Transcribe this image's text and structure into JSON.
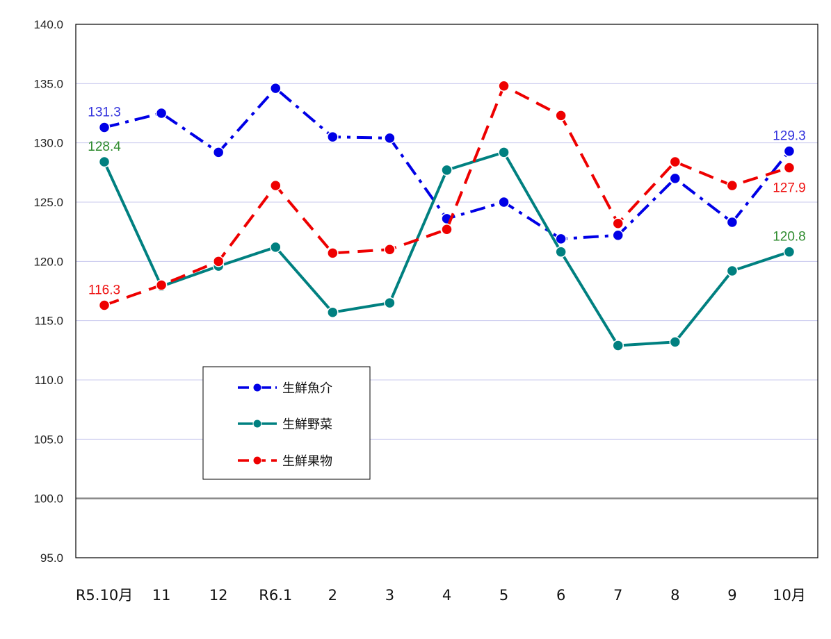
{
  "chart_data": {
    "type": "line",
    "title": "",
    "xlabel": "",
    "ylabel": "",
    "categories": [
      "R5.10月",
      "11",
      "12",
      "R6.1",
      "2",
      "3",
      "4",
      "5",
      "6",
      "7",
      "8",
      "9",
      "10月"
    ],
    "ylim": [
      95.0,
      140.0
    ],
    "yticks": [
      "95.0",
      "100.0",
      "105.0",
      "110.0",
      "115.0",
      "120.0",
      "125.0",
      "130.0",
      "135.0",
      "140.0"
    ],
    "baseline": 100.0,
    "grid": true,
    "legend_position": "lower-left",
    "series": [
      {
        "name": "生鮮魚介",
        "color": "#0000e6",
        "label_color": "#3333dd",
        "dash": "dashdot",
        "values": [
          131.3,
          132.5,
          129.2,
          134.6,
          130.5,
          130.4,
          123.6,
          125.0,
          121.9,
          122.2,
          127.0,
          123.3,
          129.3
        ],
        "labels": [
          {
            "index": 0,
            "text": "131.3",
            "placement": "above"
          },
          {
            "index": 12,
            "text": "129.3",
            "placement": "above"
          }
        ]
      },
      {
        "name": "生鮮野菜",
        "color": "#008080",
        "label_color": "#2e8b2e",
        "dash": "solid",
        "values": [
          128.4,
          117.9,
          119.6,
          121.2,
          115.7,
          116.5,
          127.7,
          129.2,
          120.8,
          112.9,
          113.2,
          119.2,
          120.8
        ],
        "labels": [
          {
            "index": 0,
            "text": "128.4",
            "placement": "above"
          },
          {
            "index": 12,
            "text": "120.8",
            "placement": "above"
          }
        ]
      },
      {
        "name": "生鮮果物",
        "color": "#ee0000",
        "label_color": "#ee1111",
        "dash": "dashed",
        "values": [
          116.3,
          118.0,
          120.0,
          126.4,
          120.7,
          121.0,
          122.7,
          134.8,
          132.3,
          123.2,
          128.4,
          126.4,
          127.9
        ],
        "labels": [
          {
            "index": 0,
            "text": "116.3",
            "placement": "above"
          },
          {
            "index": 12,
            "text": "127.9",
            "placement": "below"
          }
        ]
      }
    ]
  }
}
